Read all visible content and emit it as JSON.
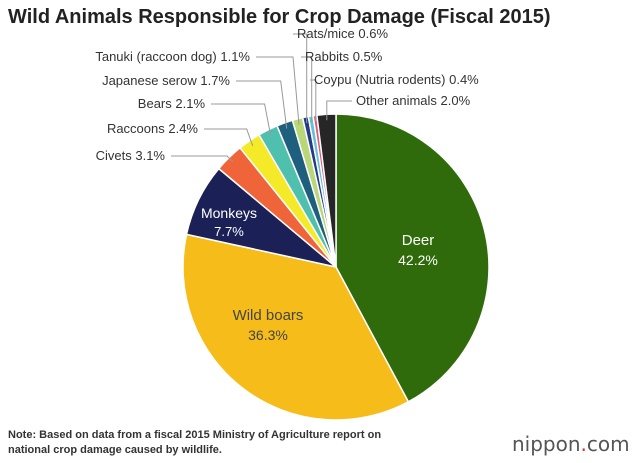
{
  "chart_data": {
    "type": "pie",
    "title": "Wild Animals Responsible for Crop Damage (Fiscal 2015)",
    "unit": "%",
    "slices": [
      {
        "label": "Deer",
        "value": 42.2,
        "color": "#2f6b0a",
        "value_label": "42.2%"
      },
      {
        "label": "Wild boars",
        "value": 36.3,
        "color": "#f6bd1a",
        "value_label": "36.3%"
      },
      {
        "label": "Monkeys",
        "value": 7.7,
        "color": "#1b2157",
        "value_label": "7.7%"
      },
      {
        "label": "Civets",
        "value": 3.1,
        "color": "#f0643a",
        "value_label": "3.1%"
      },
      {
        "label": "Raccoons",
        "value": 2.4,
        "color": "#f5ea28",
        "value_label": "2.4%"
      },
      {
        "label": "Bears",
        "value": 2.1,
        "color": "#4fbfae",
        "value_label": "2.1%"
      },
      {
        "label": "Japanese serow",
        "value": 1.7,
        "color": "#1f5f7e",
        "value_label": "1.7%"
      },
      {
        "label": "Tanuki (raccoon dog)",
        "value": 1.1,
        "color": "#b9d678",
        "value_label": "1.1%"
      },
      {
        "label": "Rats/mice",
        "value": 0.6,
        "color": "#243a8a",
        "value_label": "0.6%"
      },
      {
        "label": "Rabbits",
        "value": 0.5,
        "color": "#62c2d6",
        "value_label": "0.5%"
      },
      {
        "label": "Coypu (Nutria rodents)",
        "value": 0.4,
        "color": "#e8567c",
        "value_label": "0.4%"
      },
      {
        "label": "Other animals",
        "value": 2.0,
        "color": "#262626",
        "value_label": "2.0%"
      }
    ]
  },
  "footer": {
    "note_line1": "Note: Based on data from a fiscal 2015 Ministry of Agriculture report on",
    "note_line2": "national crop damage caused by wildlife.",
    "brand_name": "nippon",
    "brand_dot": ".",
    "brand_tld": "com"
  }
}
